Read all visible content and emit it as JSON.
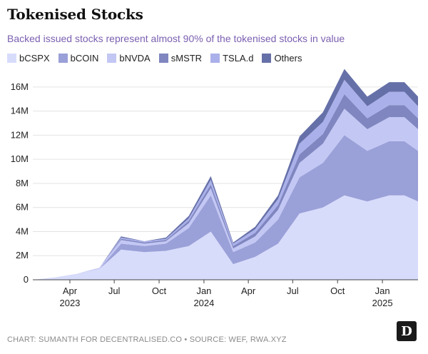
{
  "header": {
    "title": "Tokenised Stocks",
    "subtitle": "Backed issued stocks represent almost 90% of the tokenised stocks in value"
  },
  "footer": {
    "source": "CHART: SUMANTH FOR DECENTRALISED.CO • SOURCE: WEF, RWA.XYZ",
    "logo_icon": "decentralised-co-logo-icon",
    "logo_letter": "D"
  },
  "chart_data": {
    "type": "area",
    "stacked": true,
    "x": [
      "2023-01-15",
      "2023-03-01",
      "2023-04-15",
      "2023-06-01",
      "2023-07-15",
      "2023-09-01",
      "2023-10-15",
      "2023-12-01",
      "2024-01-15",
      "2024-03-01",
      "2024-04-15",
      "2024-06-01",
      "2024-07-15",
      "2024-09-01",
      "2024-10-15",
      "2024-12-01",
      "2025-01-15",
      "2025-02-15",
      "2025-03-15"
    ],
    "x_ticks": [
      {
        "date": "2023-04-01",
        "label": "Apr",
        "year": "2023"
      },
      {
        "date": "2023-07-01",
        "label": "Jul",
        "year": ""
      },
      {
        "date": "2023-10-01",
        "label": "Oct",
        "year": ""
      },
      {
        "date": "2024-01-01",
        "label": "Jan",
        "year": "2024"
      },
      {
        "date": "2024-04-01",
        "label": "Apr",
        "year": ""
      },
      {
        "date": "2024-07-01",
        "label": "Jul",
        "year": ""
      },
      {
        "date": "2024-10-01",
        "label": "Oct",
        "year": ""
      },
      {
        "date": "2025-01-01",
        "label": "Jan",
        "year": "2025"
      }
    ],
    "y_ticks": [
      "0",
      "2M",
      "4M",
      "6M",
      "8M",
      "10M",
      "12M",
      "14M",
      "16M"
    ],
    "ylim": [
      0,
      17000000
    ],
    "grid": true,
    "legend_position": "top-left",
    "series": [
      {
        "name": "bCSPX",
        "color": "#d8dcfb",
        "values": [
          0,
          200000,
          500000,
          900000,
          2500000,
          2300000,
          2400000,
          2800000,
          4000000,
          1300000,
          1900000,
          3000000,
          5500000,
          6000000,
          7000000,
          6500000,
          7000000,
          7000000,
          6500000
        ]
      },
      {
        "name": "bCOIN",
        "color": "#9aa0d8",
        "values": [
          0,
          0,
          0,
          0,
          500000,
          500000,
          600000,
          1500000,
          3000000,
          1000000,
          1200000,
          2000000,
          3000000,
          3700000,
          5000000,
          4200000,
          4500000,
          4500000,
          4200000
        ]
      },
      {
        "name": "bNVDA",
        "color": "#c3c7f4",
        "values": [
          0,
          0,
          0,
          100000,
          300000,
          200000,
          200000,
          400000,
          600000,
          300000,
          500000,
          800000,
          1200000,
          1600000,
          2200000,
          1800000,
          2000000,
          2000000,
          1800000
        ]
      },
      {
        "name": "sMSTR",
        "color": "#7f86c0",
        "values": [
          0,
          0,
          0,
          0,
          100000,
          100000,
          100000,
          200000,
          300000,
          200000,
          300000,
          400000,
          700000,
          800000,
          1200000,
          900000,
          1000000,
          1000000,
          900000
        ]
      },
      {
        "name": "TSLA.d",
        "color": "#aab0ea",
        "values": [
          0,
          0,
          0,
          0,
          100000,
          100000,
          100000,
          200000,
          400000,
          200000,
          300000,
          500000,
          900000,
          1000000,
          1200000,
          1000000,
          1100000,
          1100000,
          1000000
        ]
      },
      {
        "name": "Others",
        "color": "#6670a8",
        "values": [
          0,
          0,
          0,
          0,
          100000,
          0,
          100000,
          200000,
          300000,
          100000,
          200000,
          300000,
          600000,
          800000,
          900000,
          800000,
          800000,
          800000,
          800000
        ]
      }
    ]
  }
}
